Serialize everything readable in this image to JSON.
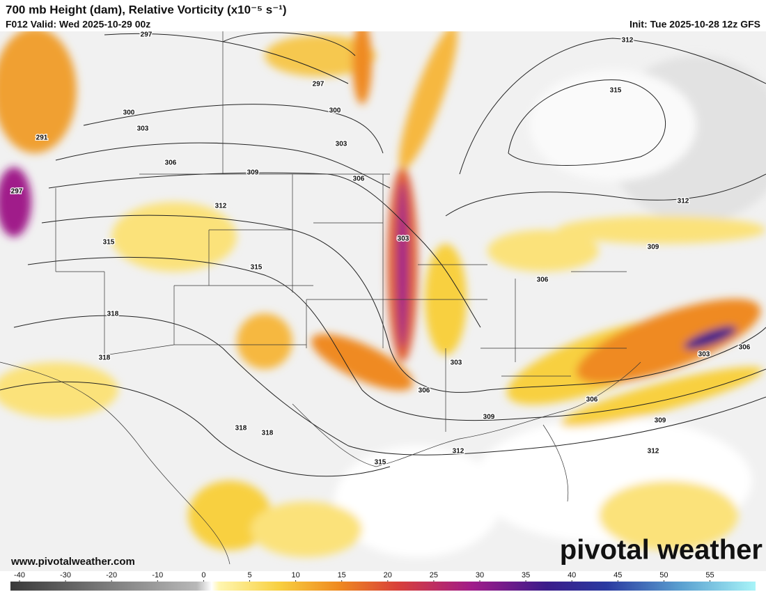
{
  "header": {
    "title": "700 mb Height (dam), Relative Vorticity (x10⁻⁵ s⁻¹)",
    "valid": "F012 Valid: Wed 2025-10-29 00z",
    "init": "Init: Tue 2025-10-28 12z GFS"
  },
  "map": {
    "url": "www.pivotalweather.com",
    "watermark": "pivotal weather",
    "contour_labels": [
      297,
      297,
      300,
      303,
      291,
      297,
      306,
      300,
      303,
      309,
      306,
      312,
      315,
      315,
      303,
      318,
      318,
      318,
      318,
      315,
      303,
      306,
      309,
      312,
      306,
      309,
      312,
      312,
      315,
      303,
      306,
      306,
      309,
      312
    ]
  },
  "colorbar": {
    "ticks": [
      -40,
      -30,
      -20,
      -10,
      0,
      5,
      10,
      15,
      20,
      25,
      30,
      35,
      40,
      45,
      50,
      55
    ]
  }
}
